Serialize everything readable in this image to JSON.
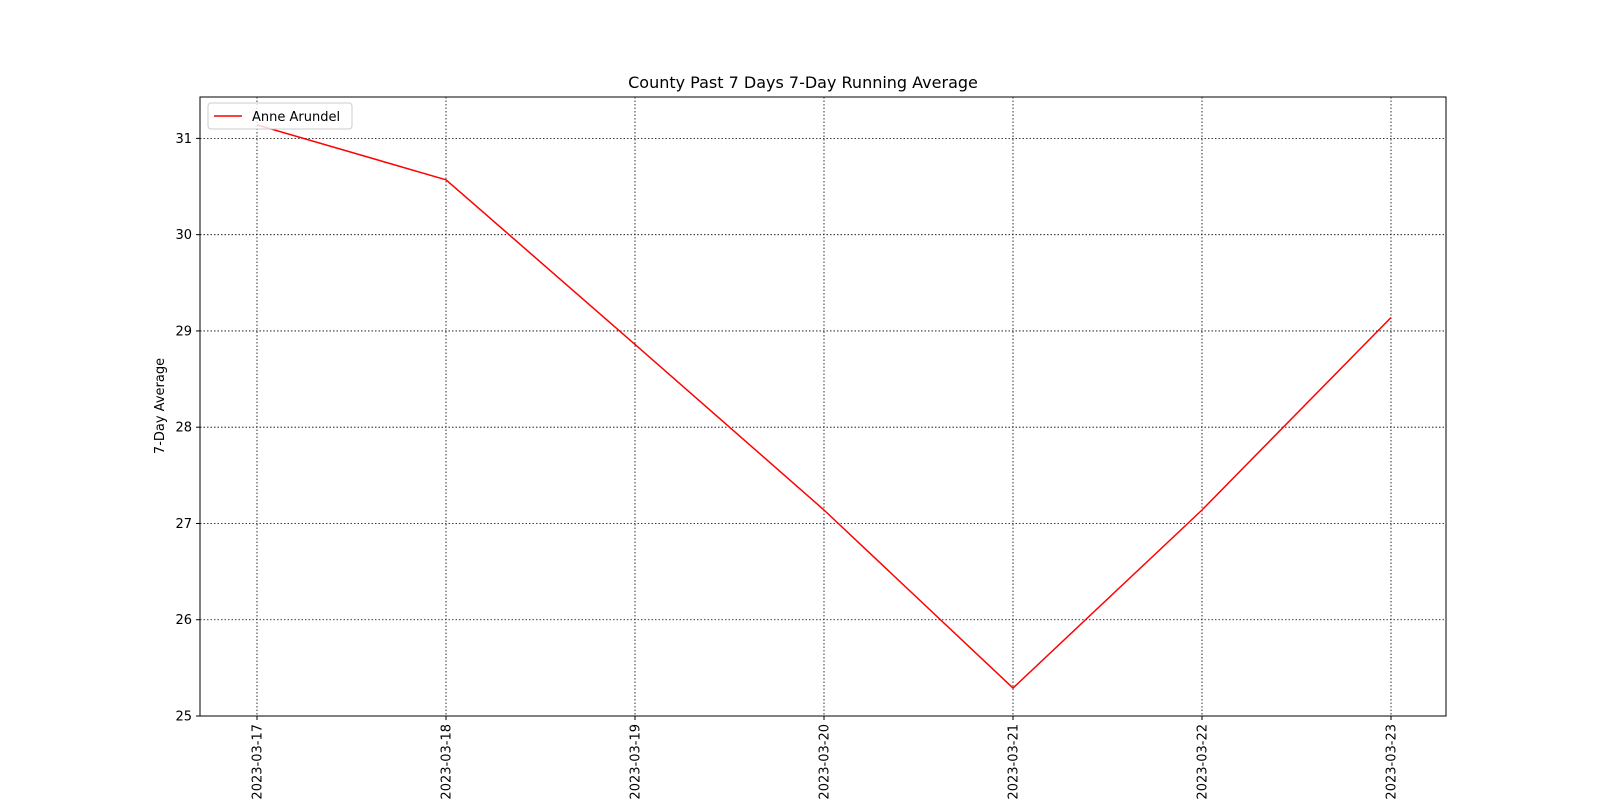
{
  "chart_data": {
    "type": "line",
    "title": "County Past 7 Days 7-Day Running Average",
    "xlabel": "",
    "ylabel": "7-Day Average",
    "x": [
      "2023-03-17",
      "2023-03-18",
      "2023-03-19",
      "2023-03-20",
      "2023-03-21",
      "2023-03-22",
      "2023-03-23"
    ],
    "series": [
      {
        "name": "Anne Arundel",
        "color": "#ff0000",
        "values": [
          31.14,
          30.57,
          28.86,
          27.14,
          25.29,
          27.14,
          29.14
        ]
      }
    ],
    "ylim": [
      25,
      31.43
    ],
    "yticks": [
      25,
      26,
      27,
      28,
      29,
      30,
      31
    ],
    "grid": true,
    "grid_style": "dotted",
    "legend_position": "top-left",
    "xtick_rotation": "vertical"
  }
}
